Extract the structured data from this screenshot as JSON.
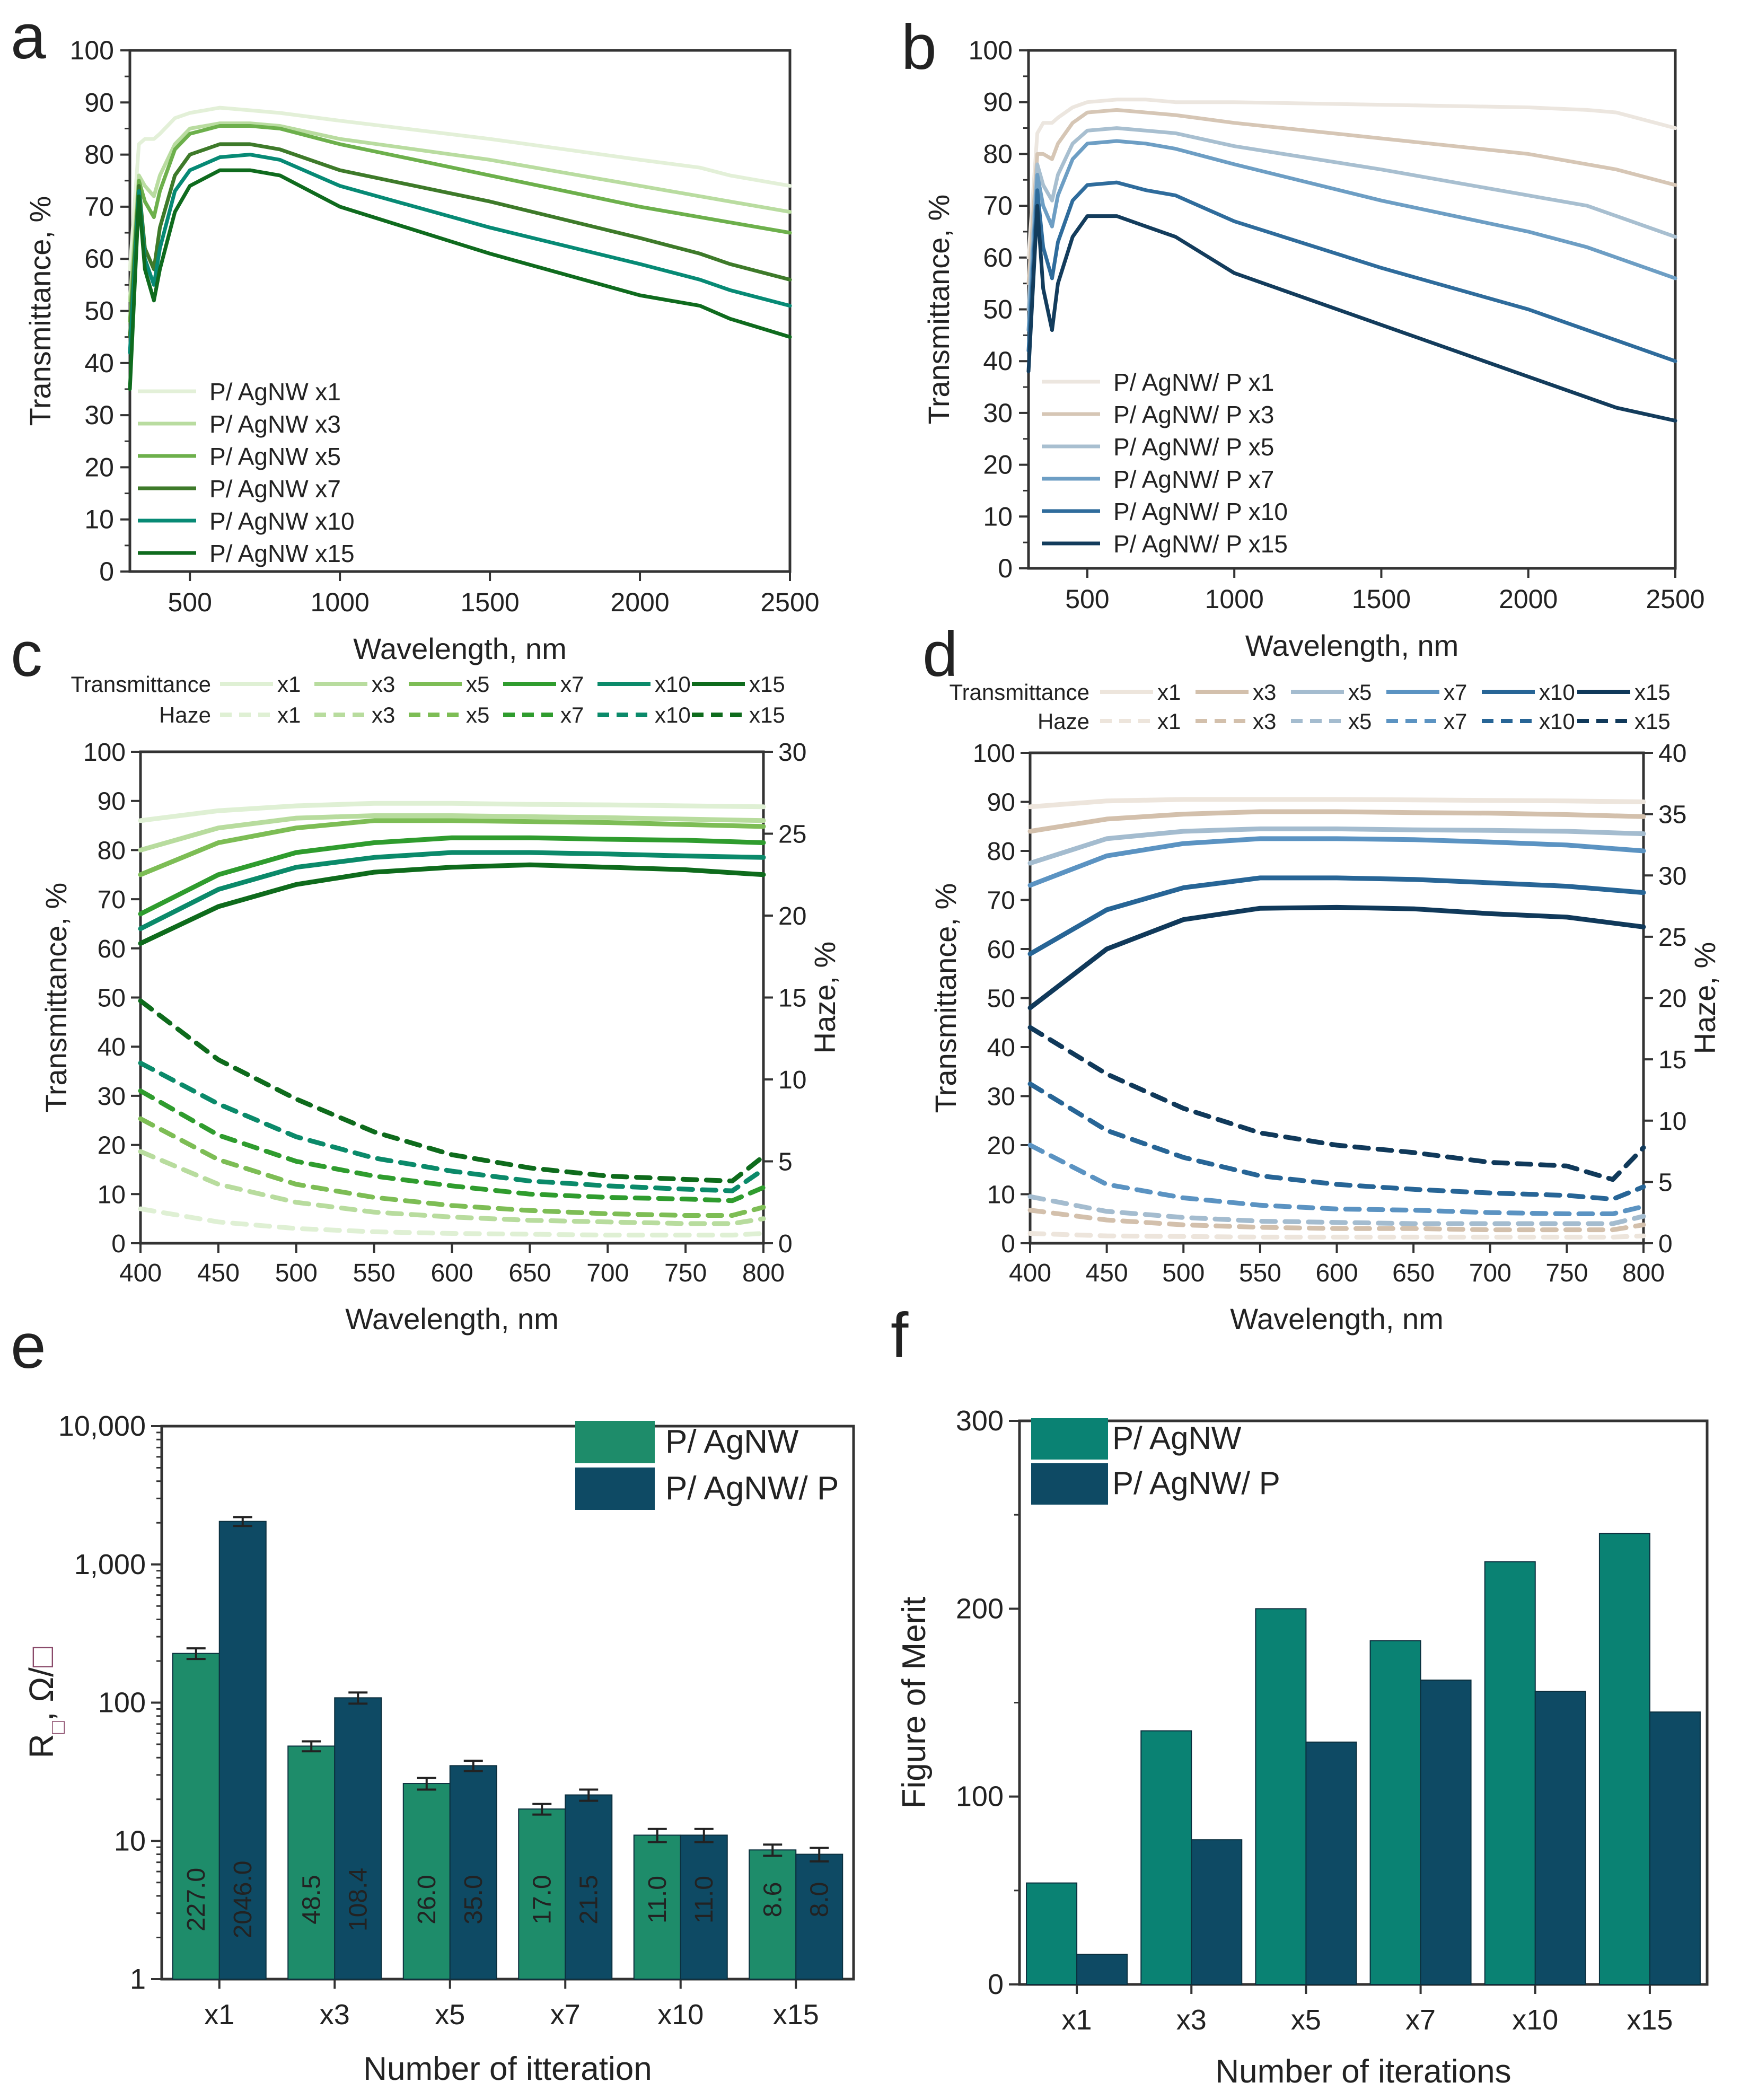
{
  "chart_data": [
    {
      "panel": "a",
      "type": "line",
      "xlabel": "Wavelength, nm",
      "ylabel": "Transmittance, %",
      "xlim": [
        300,
        2500
      ],
      "ylim": [
        0,
        100
      ],
      "xticks": [
        500,
        1000,
        1500,
        2000,
        2500
      ],
      "yticks": [
        0,
        10,
        20,
        30,
        40,
        50,
        60,
        70,
        80,
        90,
        100
      ],
      "legend_position": "bottom-left",
      "series": [
        {
          "name": "P/ AgNW x1",
          "color": "#e3f0d8",
          "x": [
            300,
            330,
            350,
            380,
            400,
            450,
            500,
            600,
            700,
            800,
            1000,
            1500,
            2000,
            2200,
            2300,
            2500
          ],
          "y": [
            58,
            82,
            83,
            83,
            84,
            87,
            88,
            89,
            88.5,
            88,
            86.5,
            83,
            79,
            77.5,
            76,
            74
          ]
        },
        {
          "name": "P/ AgNW x3",
          "color": "#b9dca0",
          "x": [
            300,
            330,
            350,
            380,
            400,
            450,
            500,
            600,
            700,
            800,
            1000,
            1500,
            2000,
            2200,
            2300,
            2500
          ],
          "y": [
            52,
            76,
            74,
            72,
            76,
            82,
            85,
            86,
            86,
            85.5,
            83,
            79,
            74,
            72,
            71,
            69
          ]
        },
        {
          "name": "P/ AgNW x5",
          "color": "#6db04c",
          "x": [
            300,
            330,
            350,
            380,
            400,
            450,
            500,
            600,
            700,
            800,
            1000,
            1500,
            2000,
            2200,
            2300,
            2500
          ],
          "y": [
            48,
            75,
            71,
            68,
            73,
            81,
            84,
            85.5,
            85.5,
            85,
            82,
            76,
            70,
            68,
            67,
            65
          ]
        },
        {
          "name": "P/ AgNW x7",
          "color": "#3e7a2a",
          "x": [
            300,
            330,
            350,
            380,
            400,
            450,
            500,
            600,
            700,
            800,
            1000,
            1500,
            2000,
            2200,
            2300,
            2500
          ],
          "y": [
            45,
            74,
            62,
            58,
            66,
            76,
            80,
            82,
            82,
            81,
            77,
            71,
            64,
            61,
            59,
            56
          ]
        },
        {
          "name": "P/ AgNW x10",
          "color": "#078a75",
          "x": [
            300,
            330,
            350,
            380,
            400,
            450,
            500,
            600,
            700,
            800,
            1000,
            1500,
            2000,
            2200,
            2300,
            2500
          ],
          "y": [
            42,
            73,
            60,
            55,
            62,
            73,
            77,
            79.5,
            80,
            79,
            74,
            66,
            59,
            56,
            54,
            51
          ]
        },
        {
          "name": "P/ AgNW x15",
          "color": "#0f6b1e",
          "x": [
            300,
            330,
            350,
            380,
            400,
            450,
            500,
            600,
            700,
            800,
            1000,
            1500,
            2000,
            2200,
            2300,
            2500
          ],
          "y": [
            35,
            72,
            58,
            52,
            58,
            69,
            74,
            77,
            77,
            76,
            70,
            61,
            53,
            51,
            48.5,
            45
          ]
        }
      ]
    },
    {
      "panel": "b",
      "type": "line",
      "xlabel": "Wavelength, nm",
      "ylabel": "Transmittance, %",
      "xlim": [
        300,
        2500
      ],
      "ylim": [
        0,
        100
      ],
      "xticks": [
        500,
        1000,
        1500,
        2000,
        2500
      ],
      "yticks": [
        0,
        10,
        20,
        30,
        40,
        50,
        60,
        70,
        80,
        90,
        100
      ],
      "legend_position": "bottom-left",
      "series": [
        {
          "name": "P/ AgNW/ P x1",
          "color": "#ece6df",
          "x": [
            300,
            330,
            350,
            380,
            400,
            450,
            500,
            600,
            700,
            800,
            1000,
            1500,
            2000,
            2200,
            2300,
            2500
          ],
          "y": [
            60,
            84,
            86,
            86,
            87,
            89,
            90,
            90.5,
            90.5,
            90,
            90,
            89.5,
            89,
            88.5,
            88,
            85
          ]
        },
        {
          "name": "P/ AgNW/ P x3",
          "color": "#d6c6b5",
          "x": [
            300,
            330,
            350,
            380,
            400,
            450,
            500,
            600,
            700,
            800,
            1000,
            1500,
            2000,
            2200,
            2300,
            2500
          ],
          "y": [
            55,
            80,
            80,
            79,
            82,
            86,
            88,
            88.5,
            88,
            87.5,
            86,
            83,
            80,
            78,
            77,
            74
          ]
        },
        {
          "name": "P/ AgNW/ P x5",
          "color": "#a8bfd0",
          "x": [
            300,
            330,
            350,
            380,
            400,
            450,
            500,
            600,
            700,
            800,
            1000,
            1500,
            2000,
            2200,
            2300,
            2500
          ],
          "y": [
            50,
            78,
            74,
            71,
            76,
            82,
            84.5,
            85,
            84.5,
            84,
            81.5,
            77,
            72,
            70,
            68,
            64
          ]
        },
        {
          "name": "P/ AgNW/ P x7",
          "color": "#6d9ec4",
          "x": [
            300,
            330,
            350,
            380,
            400,
            450,
            500,
            600,
            700,
            800,
            1000,
            1500,
            2000,
            2200,
            2300,
            2500
          ],
          "y": [
            46,
            76,
            70,
            66,
            72,
            79,
            82,
            82.5,
            82,
            81,
            78,
            71,
            65,
            62,
            60,
            56
          ]
        },
        {
          "name": "P/ AgNW/ P x10",
          "color": "#2f6c9c",
          "x": [
            300,
            330,
            350,
            380,
            400,
            450,
            500,
            600,
            700,
            800,
            1000,
            1500,
            2000,
            2200,
            2300,
            2500
          ],
          "y": [
            42,
            73,
            62,
            56,
            63,
            71,
            74,
            74.5,
            73,
            72,
            67,
            58,
            50,
            46,
            44,
            40
          ]
        },
        {
          "name": "P/ AgNW/ P x15",
          "color": "#133c5c",
          "x": [
            300,
            330,
            350,
            380,
            400,
            450,
            500,
            600,
            700,
            800,
            1000,
            1500,
            2000,
            2200,
            2300,
            2500
          ],
          "y": [
            38,
            70,
            54,
            46,
            55,
            64,
            68,
            68,
            66,
            64,
            57,
            47,
            37,
            33,
            31,
            28.5
          ]
        }
      ]
    },
    {
      "panel": "c",
      "type": "line",
      "xlabel": "Wavelength, nm",
      "ylabel": "Transmittance, %",
      "y2label": "Haze, %",
      "xlim": [
        400,
        800
      ],
      "ylim": [
        0,
        100
      ],
      "y2lim": [
        0,
        30
      ],
      "xticks": [
        400,
        450,
        500,
        550,
        600,
        650,
        700,
        750,
        800
      ],
      "yticks": [
        0,
        10,
        20,
        30,
        40,
        50,
        60,
        70,
        80,
        90,
        100
      ],
      "y2ticks": [
        0,
        5,
        10,
        15,
        20,
        25,
        30
      ],
      "legend_rows": [
        "Transmittance",
        "Haze"
      ],
      "legend_position": "top",
      "series_labels": [
        "x1",
        "x3",
        "x5",
        "x7",
        "x10",
        "x15"
      ],
      "colors": [
        "#dff0d4",
        "#b8dc9e",
        "#7dbd55",
        "#2f9c2e",
        "#0b8a6a",
        "#0e6b1c"
      ],
      "transmittance": {
        "x": [
          400,
          450,
          500,
          550,
          600,
          650,
          700,
          750,
          800
        ],
        "series": [
          [
            86,
            88,
            89,
            89.5,
            89.5,
            89.3,
            89.2,
            89,
            88.8
          ],
          [
            80,
            84.5,
            86.5,
            87,
            87,
            86.8,
            86.6,
            86.3,
            86
          ],
          [
            75,
            81.5,
            84.5,
            86,
            86,
            85.8,
            85.6,
            85.2,
            84.8
          ],
          [
            67,
            75,
            79.5,
            81.5,
            82.5,
            82.5,
            82.2,
            82,
            81.5
          ],
          [
            64,
            72,
            76.5,
            78.5,
            79.5,
            79.5,
            79.2,
            78.8,
            78.5
          ],
          [
            61,
            68.5,
            73,
            75.5,
            76.5,
            77,
            76.5,
            76,
            75
          ]
        ]
      },
      "haze": {
        "x": [
          400,
          450,
          500,
          550,
          600,
          650,
          700,
          750,
          780,
          800
        ],
        "series": [
          [
            2.1,
            1.3,
            0.9,
            0.7,
            0.6,
            0.55,
            0.5,
            0.5,
            0.5,
            0.6
          ],
          [
            5.6,
            3.6,
            2.5,
            1.9,
            1.6,
            1.4,
            1.3,
            1.2,
            1.2,
            1.5
          ],
          [
            7.6,
            5.1,
            3.6,
            2.8,
            2.3,
            2.0,
            1.8,
            1.7,
            1.7,
            2.2
          ],
          [
            9.3,
            6.6,
            5.0,
            4.1,
            3.5,
            3.0,
            2.8,
            2.7,
            2.6,
            3.4
          ],
          [
            11.0,
            8.5,
            6.5,
            5.2,
            4.4,
            3.8,
            3.5,
            3.3,
            3.2,
            4.5
          ],
          [
            14.8,
            11.2,
            8.8,
            6.8,
            5.4,
            4.6,
            4.1,
            3.9,
            3.8,
            5.3
          ]
        ]
      }
    },
    {
      "panel": "d",
      "type": "line",
      "xlabel": "Wavelength, nm",
      "ylabel": "Transmittance, %",
      "y2label": "Haze, %",
      "xlim": [
        400,
        800
      ],
      "ylim": [
        0,
        100
      ],
      "y2lim": [
        0,
        40
      ],
      "xticks": [
        400,
        450,
        500,
        550,
        600,
        650,
        700,
        750,
        800
      ],
      "yticks": [
        0,
        10,
        20,
        30,
        40,
        50,
        60,
        70,
        80,
        90,
        100
      ],
      "y2ticks": [
        0,
        5,
        10,
        15,
        20,
        25,
        30,
        35,
        40
      ],
      "legend_rows": [
        "Transmittance",
        "Haze"
      ],
      "legend_position": "top",
      "series_labels": [
        "x1",
        "x3",
        "x5",
        "x7",
        "x10",
        "x15"
      ],
      "colors": [
        "#ede5dc",
        "#d3c0ac",
        "#a4bccf",
        "#5b93c2",
        "#276596",
        "#10395a"
      ],
      "transmittance": {
        "x": [
          400,
          450,
          500,
          550,
          600,
          650,
          700,
          750,
          800
        ],
        "series": [
          [
            89,
            90.2,
            90.5,
            90.5,
            90.5,
            90.4,
            90.3,
            90.2,
            90
          ],
          [
            84,
            86.5,
            87.5,
            88,
            88,
            87.8,
            87.7,
            87.4,
            87
          ],
          [
            77.5,
            82.5,
            84,
            84.5,
            84.5,
            84.3,
            84.2,
            84,
            83.5
          ],
          [
            73,
            79,
            81.5,
            82.5,
            82.5,
            82.3,
            81.8,
            81.2,
            80
          ],
          [
            59,
            68,
            72.5,
            74.5,
            74.5,
            74.2,
            73.5,
            72.8,
            71.5
          ],
          [
            48,
            60,
            66,
            68.3,
            68.5,
            68.2,
            67.2,
            66.5,
            64.5
          ]
        ]
      },
      "haze": {
        "x": [
          400,
          450,
          500,
          550,
          600,
          650,
          700,
          750,
          780,
          800
        ],
        "series": [
          [
            0.8,
            0.6,
            0.55,
            0.5,
            0.5,
            0.5,
            0.5,
            0.5,
            0.5,
            0.6
          ],
          [
            2.7,
            1.9,
            1.5,
            1.3,
            1.2,
            1.2,
            1.1,
            1.1,
            1.1,
            1.5
          ],
          [
            3.8,
            2.6,
            2.1,
            1.8,
            1.7,
            1.6,
            1.6,
            1.6,
            1.6,
            2.2
          ],
          [
            8.0,
            4.8,
            3.7,
            3.1,
            2.8,
            2.7,
            2.5,
            2.4,
            2.4,
            3.0
          ],
          [
            13.0,
            9.2,
            7.0,
            5.5,
            4.8,
            4.4,
            4.1,
            3.9,
            3.6,
            4.6
          ],
          [
            17.6,
            13.8,
            11.0,
            9.0,
            8.0,
            7.4,
            6.6,
            6.3,
            5.2,
            7.8
          ]
        ]
      }
    },
    {
      "panel": "e",
      "type": "bar",
      "scale": "log",
      "xlabel": "Number of itteration",
      "ylabel_main": "R",
      "ylabel_sub": "□",
      "ylabel_rest": ", Ω/",
      "ylabel_unit": "□",
      "ylim": [
        1,
        10000
      ],
      "ytick_values": [
        1,
        10,
        100,
        1000,
        10000
      ],
      "ytick_labels": [
        "1",
        "10",
        "100",
        "1,000",
        "10,000"
      ],
      "categories": [
        "x1",
        "x3",
        "x5",
        "x7",
        "x10",
        "x15"
      ],
      "legend_position": "top-right",
      "series": [
        {
          "name": "P/ AgNW",
          "color": "#1e8c6a",
          "values": [
            227.0,
            48.5,
            26.0,
            17.0,
            11.0,
            8.6
          ],
          "labels": [
            "227.0",
            "48.5",
            "26.0",
            "17.0",
            "11.0",
            "8.6"
          ],
          "errors": [
            20,
            4,
            2.5,
            1.5,
            1.2,
            0.8
          ]
        },
        {
          "name": "P/ AgNW/ P",
          "color": "#0e4a64",
          "values": [
            2046.0,
            108.4,
            35.0,
            21.5,
            11.0,
            8.0
          ],
          "labels": [
            "2046.0",
            "108.4",
            "35.0",
            "21.5",
            "11.0",
            "8.0"
          ],
          "errors": [
            150,
            10,
            3,
            2,
            1.2,
            0.9
          ]
        }
      ]
    },
    {
      "panel": "f",
      "type": "bar",
      "xlabel": "Number of iterations",
      "ylabel": "Figure of Merit",
      "ylim": [
        0,
        300
      ],
      "yticks": [
        0,
        100,
        200,
        300
      ],
      "categories": [
        "x1",
        "x3",
        "x5",
        "x7",
        "x10",
        "x15"
      ],
      "legend_position": "top-left",
      "series": [
        {
          "name": "P/ AgNW",
          "color": "#0a8273",
          "values": [
            54,
            135,
            200,
            183,
            225,
            240
          ]
        },
        {
          "name": "P/ AgNW/ P",
          "color": "#0e4a64",
          "values": [
            16,
            77,
            129,
            162,
            156,
            145
          ]
        }
      ]
    }
  ]
}
